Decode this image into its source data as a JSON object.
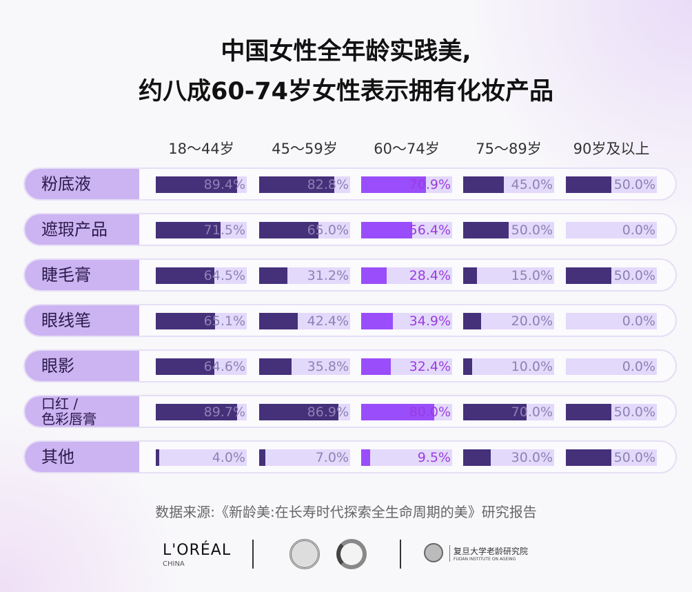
{
  "title": {
    "line1": "中国女性全年龄实践美,",
    "line2": "约八成60-74岁女性表示拥有化妆产品"
  },
  "chart_data": {
    "type": "bar",
    "categories": [
      "粉底液",
      "遮瑕产品",
      "睫毛膏",
      "眼线笔",
      "眼影",
      "口红 / 色彩唇膏",
      "其他"
    ],
    "category_lines": [
      [
        "粉底液"
      ],
      [
        "遮瑕产品"
      ],
      [
        "睫毛膏"
      ],
      [
        "眼线笔"
      ],
      [
        "眼影"
      ],
      [
        "口红 /",
        "色彩唇膏"
      ],
      [
        "其他"
      ]
    ],
    "series": [
      {
        "name": "18～44岁",
        "values": [
          89.4,
          71.5,
          64.5,
          65.1,
          64.6,
          89.7,
          4.0
        ]
      },
      {
        "name": "45～59岁",
        "values": [
          82.8,
          65.0,
          31.2,
          42.4,
          35.8,
          86.9,
          7.0
        ]
      },
      {
        "name": "60～74岁",
        "values": [
          70.9,
          56.4,
          28.4,
          34.9,
          32.4,
          80.0,
          9.5
        ],
        "highlight": true
      },
      {
        "name": "75～89岁",
        "values": [
          45.0,
          50.0,
          15.0,
          20.0,
          10.0,
          70.0,
          30.0
        ]
      },
      {
        "name": "90岁及以上",
        "values": [
          50.0,
          0.0,
          50.0,
          0.0,
          0.0,
          50.0,
          50.0
        ]
      }
    ],
    "ylim": [
      0,
      100
    ],
    "unit": "%",
    "colors": {
      "bar": "#45307a",
      "highlight": "#9a4dfa",
      "track": "#e3d9fb",
      "label_bg": "#ccb3f2"
    }
  },
  "source": "数据来源:《新龄美:在长寿时代探索全生命周期的美》研究报告",
  "logos": {
    "loreal": "L'ORÉAL",
    "loreal_sub": "CHINA",
    "fudan": "复旦大学老龄研究院",
    "fudan_sub": "FUDAN INSTITUTE ON AGEING"
  }
}
